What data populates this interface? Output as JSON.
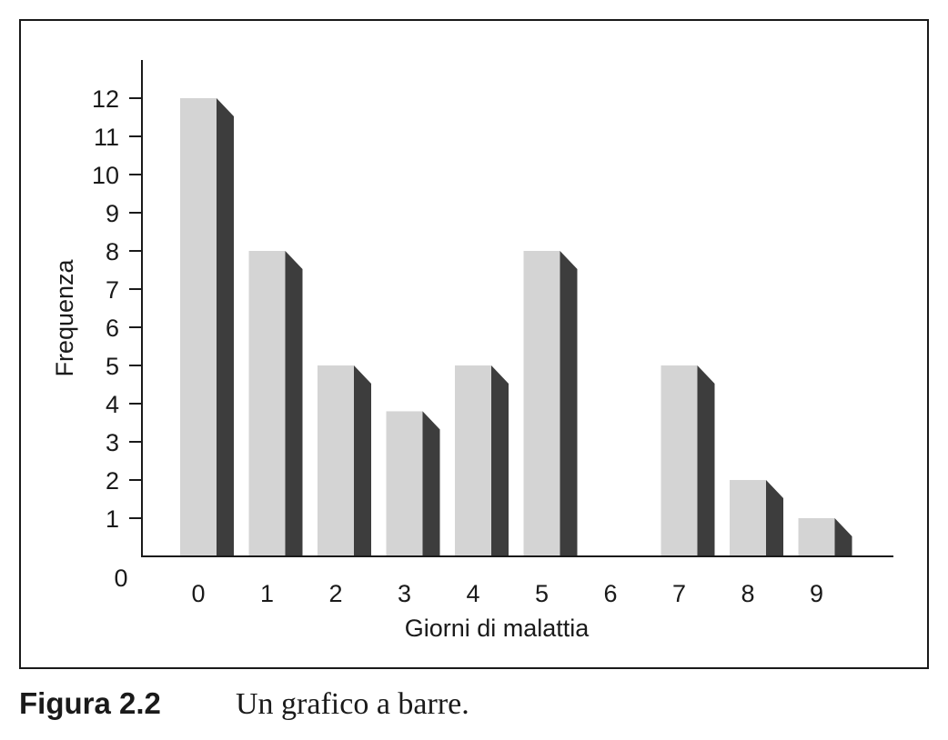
{
  "chart_data": {
    "type": "bar",
    "categories": [
      "0",
      "1",
      "2",
      "3",
      "4",
      "5",
      "6",
      "7",
      "8",
      "9"
    ],
    "values": [
      12,
      8,
      5,
      3.8,
      5,
      8,
      0,
      5,
      2,
      1
    ],
    "xlabel": "Giorni di malattia",
    "ylabel": "Frequenza",
    "ylim": [
      0,
      12
    ],
    "yticks": [
      "0",
      "1",
      "2",
      "3",
      "4",
      "5",
      "6",
      "7",
      "8",
      "9",
      "10",
      "11",
      "12"
    ],
    "grid": false,
    "colors": {
      "bar_front": "#d4d4d4",
      "bar_side": "#3d3d3d",
      "axis": "#1a1a1a"
    }
  },
  "caption": {
    "label": "Figura 2.2",
    "text": "Un grafico a barre."
  }
}
